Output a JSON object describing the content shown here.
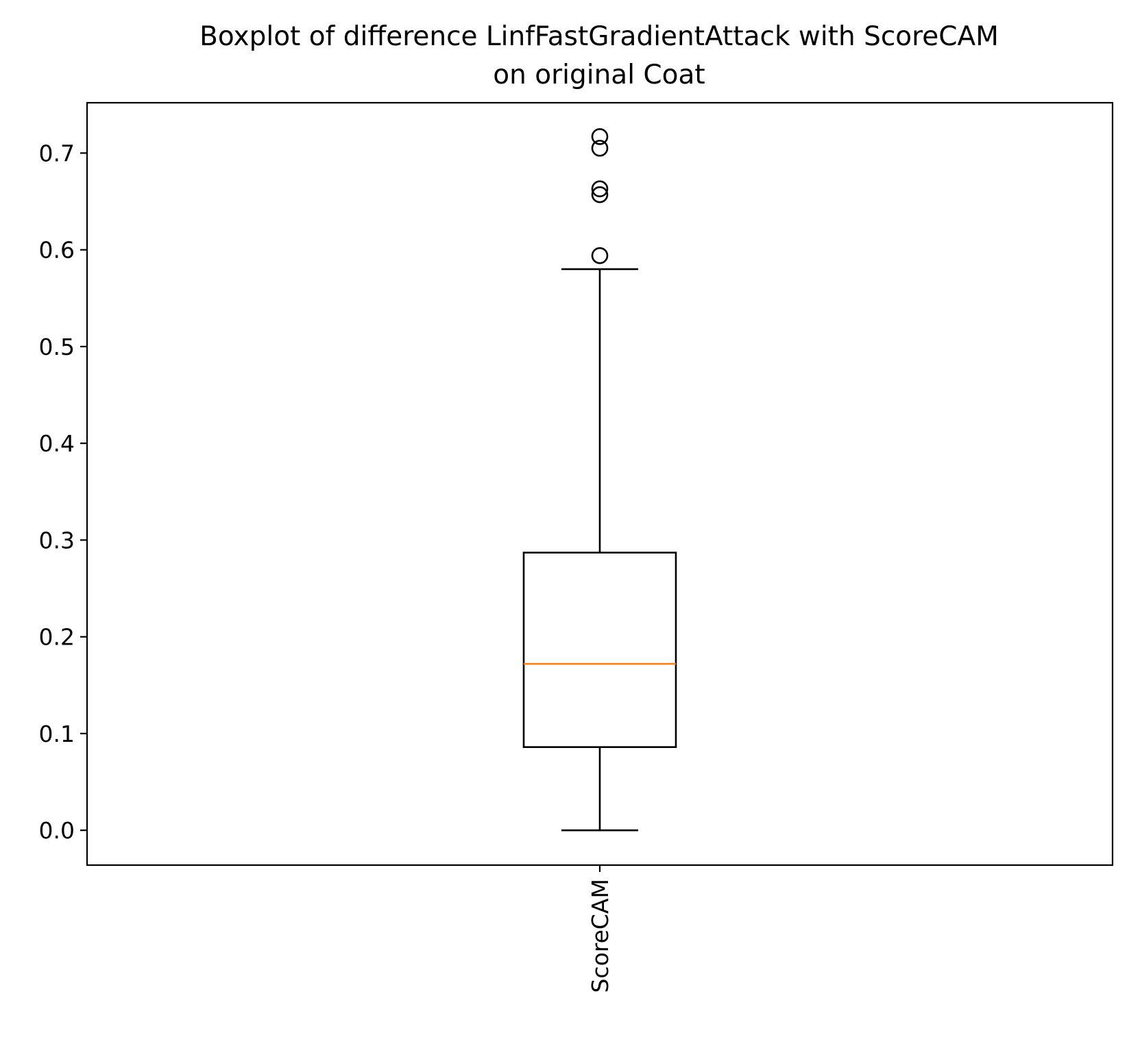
{
  "chart_data": {
    "type": "box",
    "title_lines": [
      "Boxplot of difference LinfFastGradientAttack with ScoreCAM",
      "on original Coat"
    ],
    "xlabel": "",
    "ylabel": "",
    "categories": [
      "ScoreCAM"
    ],
    "ylim": [
      -0.036,
      0.752
    ],
    "yticks": [
      0.0,
      0.1,
      0.2,
      0.3,
      0.4,
      0.5,
      0.6,
      0.7
    ],
    "ytick_labels": [
      "0.0",
      "0.1",
      "0.2",
      "0.3",
      "0.4",
      "0.5",
      "0.6",
      "0.7"
    ],
    "x_tick_rotation": 90,
    "grid": false,
    "legend": "none",
    "boxes": [
      {
        "category": "ScoreCAM",
        "whisker_low": 0.0,
        "q1": 0.086,
        "median": 0.172,
        "q3": 0.287,
        "whisker_high": 0.58,
        "outliers": [
          0.594,
          0.657,
          0.663,
          0.705,
          0.717
        ]
      }
    ],
    "colors": {
      "box": "#000000",
      "median": "#ff7f0e",
      "outlier": "#000000"
    }
  }
}
